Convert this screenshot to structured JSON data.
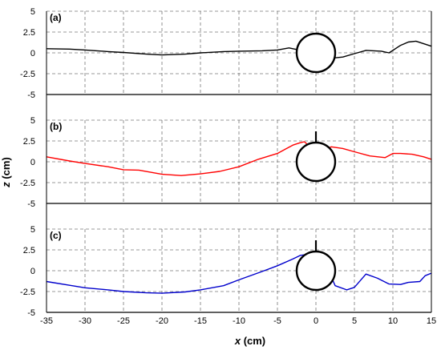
{
  "chart_data": {
    "type": "line",
    "xlabel_var": "x",
    "xlabel_unit": " (cm)",
    "ylabel_var": "z",
    "ylabel_unit": " (cm)",
    "xlim": [
      -35,
      15
    ],
    "x_ticks": [
      -35,
      -30,
      -25,
      -20,
      -15,
      -10,
      -5,
      0,
      5,
      10,
      15
    ],
    "ylim": [
      -5,
      5
    ],
    "y_ticks": [
      "5",
      "2.5",
      "0",
      "-2.5",
      "-5"
    ],
    "grid": true,
    "cylinder": {
      "center_x": 0,
      "center_z": 0,
      "diameter": 5
    },
    "panels": [
      {
        "label": "(a)",
        "color": "#000000",
        "rod": false,
        "series": {
          "x": [
            -35,
            -32,
            -30,
            -27,
            -25,
            -22,
            -20,
            -17,
            -15,
            -12,
            -10,
            -7,
            -5,
            -3.5,
            -2.5,
            2.5,
            3.5,
            5,
            6.5,
            8.5,
            9.5,
            11,
            12,
            13,
            14,
            15
          ],
          "y": [
            0.5,
            0.45,
            0.35,
            0.15,
            0.05,
            -0.15,
            -0.25,
            -0.15,
            0.0,
            0.15,
            0.2,
            0.25,
            0.35,
            0.6,
            0.4,
            -0.6,
            -0.5,
            -0.1,
            0.3,
            0.2,
            0.0,
            0.9,
            1.3,
            1.4,
            1.1,
            0.8
          ]
        }
      },
      {
        "label": "(b)",
        "color": "#ff0000",
        "rod": true,
        "series": {
          "x": [
            -35,
            -32,
            -30,
            -27,
            -25,
            -23,
            -20,
            -17.5,
            -15,
            -12.5,
            -10,
            -7.5,
            -5,
            -4,
            -3,
            -2,
            -1.5,
            -1,
            -0.4,
            0.5,
            1.5,
            2,
            3.5,
            5,
            7,
            9,
            10,
            11,
            12.5,
            14,
            15
          ],
          "y": [
            0.6,
            0.1,
            -0.2,
            -0.6,
            -0.95,
            -1.0,
            -1.5,
            -1.65,
            -1.45,
            -1.15,
            -0.6,
            0.3,
            1.0,
            1.5,
            2.0,
            2.3,
            2.4,
            2.0,
            1.6,
            1.2,
            1.6,
            1.8,
            1.6,
            1.2,
            0.7,
            0.5,
            1.0,
            1.0,
            0.9,
            0.6,
            0.3
          ]
        }
      },
      {
        "label": "(c)",
        "color": "#0000cc",
        "rod": true,
        "series": {
          "x": [
            -35,
            -32,
            -30,
            -27,
            -25,
            -22,
            -20,
            -17,
            -15,
            -12,
            -10,
            -7,
            -5,
            -3,
            -2,
            -1.5,
            -1,
            -0.4,
            0.5,
            1.5,
            2.5,
            4,
            5,
            6.5,
            8,
            9.5,
            11,
            12,
            13.5,
            14.2,
            15
          ],
          "y": [
            -1.3,
            -1.75,
            -2.05,
            -2.3,
            -2.5,
            -2.65,
            -2.7,
            -2.55,
            -2.3,
            -1.8,
            -1.1,
            -0.1,
            0.6,
            1.4,
            1.85,
            1.9,
            1.7,
            1.6,
            0.9,
            0.3,
            -1.8,
            -2.3,
            -2.0,
            -0.4,
            -0.9,
            -1.6,
            -1.65,
            -1.4,
            -1.3,
            -0.6,
            -0.3
          ]
        }
      }
    ]
  }
}
